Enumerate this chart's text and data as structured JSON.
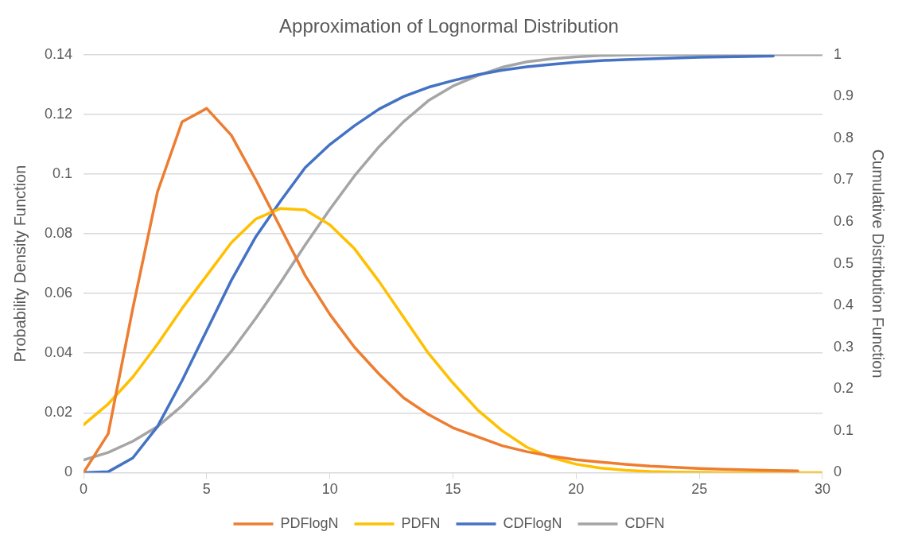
{
  "chart_data": {
    "type": "line",
    "title": "Approximation of Lognormal Distribution",
    "ylabel": "Probability Density Function",
    "y2label": "Cumulative Distribution Function",
    "xlim": [
      0,
      30
    ],
    "xticks": [
      0,
      5,
      10,
      15,
      20,
      25,
      30
    ],
    "ylim": [
      0,
      0.14
    ],
    "yticks": [
      0,
      0.02,
      0.04,
      0.06,
      0.08,
      0.1,
      0.12,
      0.14
    ],
    "y2lim": [
      0,
      1
    ],
    "y2ticks": [
      0,
      0.1,
      0.2,
      0.3,
      0.4,
      0.5,
      0.6,
      0.7,
      0.8,
      0.9,
      1
    ],
    "grid": "y",
    "legend": "bottom",
    "marker": "none",
    "line_style": "solid",
    "series": [
      {
        "name": "PDFlogN",
        "color": "#ed7d31",
        "x": [
          0,
          1,
          2,
          3,
          4,
          5,
          6,
          7,
          8,
          9,
          10,
          11,
          12,
          13,
          14,
          15,
          16,
          17,
          18,
          19,
          20,
          21,
          22,
          23,
          24,
          25,
          26,
          27,
          28,
          29
        ],
        "values": [
          0,
          0.013,
          0.055,
          0.094,
          0.1175,
          0.122,
          0.113,
          0.098,
          0.082,
          0.066,
          0.053,
          0.042,
          0.033,
          0.025,
          0.0195,
          0.015,
          0.012,
          0.009,
          0.007,
          0.0055,
          0.0043,
          0.0035,
          0.0028,
          0.0022,
          0.0018,
          0.0014,
          0.0011,
          0.0009,
          0.0007,
          0.0006
        ]
      },
      {
        "name": "PDFN",
        "color": "#ffc000",
        "x": [
          0,
          1,
          2,
          3,
          4,
          5,
          6,
          7,
          8,
          9,
          10,
          11,
          12,
          13,
          14,
          15,
          16,
          17,
          18,
          19,
          20,
          21,
          22,
          23,
          24,
          25,
          26,
          27,
          28,
          29,
          30
        ],
        "values": [
          0.016,
          0.023,
          0.032,
          0.043,
          0.055,
          0.066,
          0.077,
          0.085,
          0.0885,
          0.088,
          0.083,
          0.075,
          0.064,
          0.052,
          0.04,
          0.03,
          0.021,
          0.014,
          0.0085,
          0.005,
          0.0028,
          0.0015,
          0.0008,
          0.0004,
          0.0002,
          0.0001,
          0,
          0,
          0,
          0,
          0
        ]
      },
      {
        "name": "CDFlogN",
        "color": "#4472c4",
        "axis": "y2",
        "x": [
          0,
          1,
          2,
          3,
          4,
          5,
          6,
          7,
          8,
          9,
          10,
          11,
          12,
          13,
          14,
          15,
          16,
          17,
          18,
          19,
          20,
          21,
          22,
          23,
          24,
          25,
          26,
          27,
          28
        ],
        "values": [
          0,
          0.002,
          0.035,
          0.11,
          0.22,
          0.34,
          0.46,
          0.565,
          0.65,
          0.73,
          0.785,
          0.83,
          0.87,
          0.9,
          0.922,
          0.938,
          0.952,
          0.963,
          0.971,
          0.977,
          0.982,
          0.986,
          0.988,
          0.99,
          0.992,
          0.994,
          0.995,
          0.996,
          0.997
        ]
      },
      {
        "name": "CDFN",
        "color": "#a5a5a5",
        "axis": "y2",
        "x": [
          0,
          1,
          2,
          3,
          4,
          5,
          6,
          7,
          8,
          9,
          10,
          11,
          12,
          13,
          14,
          15,
          16,
          17,
          18,
          19,
          20,
          21,
          22,
          23,
          24,
          25,
          26,
          27,
          28,
          29,
          30
        ],
        "values": [
          0.03,
          0.048,
          0.075,
          0.11,
          0.16,
          0.22,
          0.29,
          0.37,
          0.455,
          0.545,
          0.63,
          0.71,
          0.78,
          0.84,
          0.89,
          0.925,
          0.95,
          0.97,
          0.983,
          0.99,
          0.995,
          0.998,
          0.999,
          1,
          1,
          1,
          1,
          1,
          1,
          1,
          1
        ]
      }
    ]
  }
}
